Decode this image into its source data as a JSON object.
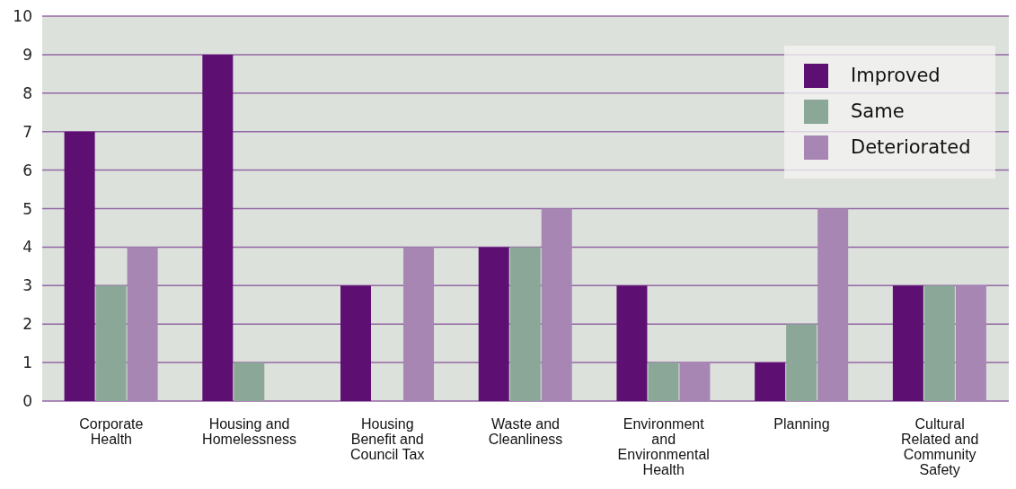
{
  "chart_data": {
    "type": "bar",
    "categories": [
      "Corporate Health",
      "Housing and Homelessness",
      "Housing Benefit and Council Tax",
      "Waste and Cleanliness",
      "Environment and Environmental Health",
      "Planning",
      "Cultural Related and Community Safety"
    ],
    "series": [
      {
        "name": "Improved",
        "color": "#5e0f72",
        "values": [
          7,
          9,
          3,
          4,
          3,
          1,
          3
        ]
      },
      {
        "name": "Same",
        "color": "#8aa797",
        "values": [
          3,
          1,
          0,
          4,
          1,
          2,
          3
        ]
      },
      {
        "name": "Deteriorated",
        "color": "#a886b4",
        "values": [
          4,
          0,
          4,
          5,
          1,
          5,
          3
        ]
      }
    ],
    "ylim": [
      0,
      10
    ],
    "yticks": [
      0,
      1,
      2,
      3,
      4,
      5,
      6,
      7,
      8,
      9,
      10
    ],
    "grid": "y",
    "legend": "top right"
  }
}
